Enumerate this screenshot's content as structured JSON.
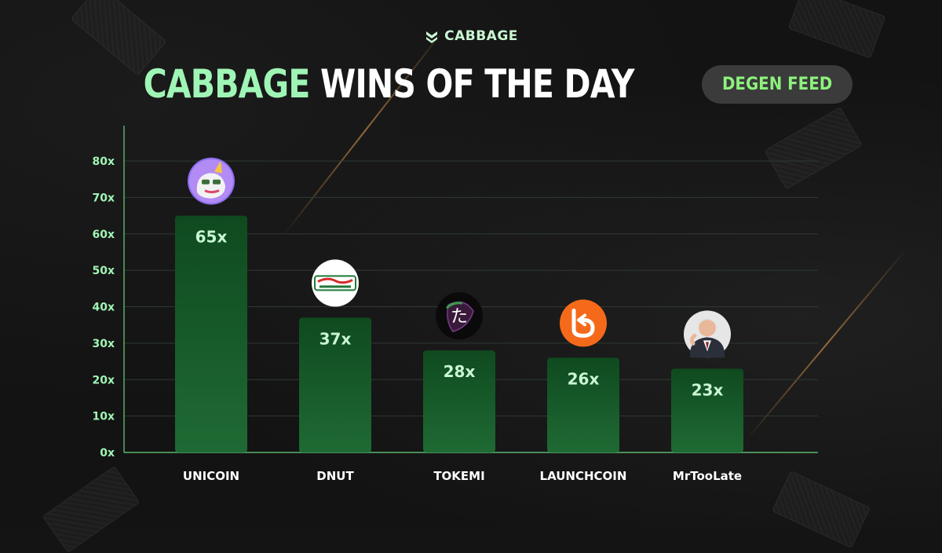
{
  "brand": {
    "name": "CABBAGE",
    "logo_icon": "cabbage-logo-icon"
  },
  "header": {
    "title_accent": "CABBAGE",
    "title_rest": "WINS OF THE DAY",
    "badge": "DEGEN FEED"
  },
  "colors": {
    "accent": "#9ff5b5",
    "bar_top": "#0f4a1f",
    "bar_bottom": "#1b5e2e",
    "badge_text": "#8df27c"
  },
  "chart_data": {
    "type": "bar",
    "categories": [
      "UNICOIN",
      "DNUT",
      "TOKEMI",
      "LAUNCHCOIN",
      "MrTooLate"
    ],
    "values": [
      65,
      37,
      28,
      26,
      23
    ],
    "value_labels": [
      "65x",
      "37x",
      "28x",
      "26x",
      "23x"
    ],
    "y_ticks": [
      0,
      10,
      20,
      30,
      40,
      50,
      60,
      70,
      80
    ],
    "y_tick_labels": [
      "0x",
      "10x",
      "20x",
      "30x",
      "40x",
      "50x",
      "60x",
      "70x",
      "80x"
    ],
    "ylim": [
      0,
      80
    ],
    "grid": true,
    "icons": [
      "unicorn-pepe-avatar-icon",
      "krispy-kreme-logo-icon",
      "tokemi-logo-icon",
      "launchcoin-logo-icon",
      "man-in-suit-avatar-icon"
    ]
  }
}
